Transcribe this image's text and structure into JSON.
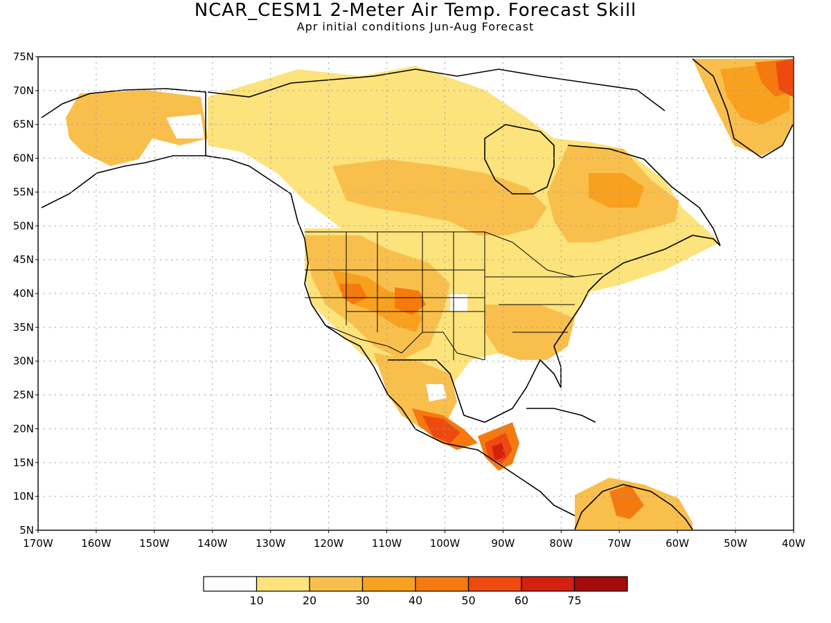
{
  "title": "NCAR_CESM1 2-Meter Air Temp. Forecast Skill",
  "subtitle": "Apr initial conditions  Jun-Aug Forecast",
  "lat_labels": [
    "75N",
    "70N",
    "65N",
    "60N",
    "55N",
    "50N",
    "45N",
    "40N",
    "35N",
    "30N",
    "25N",
    "20N",
    "15N",
    "10N",
    "5N"
  ],
  "lon_labels": [
    "170W",
    "160W",
    "150W",
    "140W",
    "130W",
    "120W",
    "110W",
    "100W",
    "90W",
    "80W",
    "70W",
    "60W",
    "50W",
    "40W"
  ],
  "colorbar": {
    "colors": [
      "#ffffff",
      "#fce37c",
      "#f9bf4c",
      "#f7a11e",
      "#f47a10",
      "#ee4a0f",
      "#d4200f",
      "#a50b0b"
    ],
    "labels": [
      "10",
      "20",
      "30",
      "40",
      "50",
      "60",
      "75"
    ]
  },
  "colors": {
    "c10_20": "#fce37c",
    "c20_30": "#f9bf4c",
    "c30_40": "#f7a11e",
    "c40_50": "#f47a10",
    "c50_60": "#ee4a0f",
    "c60_75": "#d4200f"
  }
}
